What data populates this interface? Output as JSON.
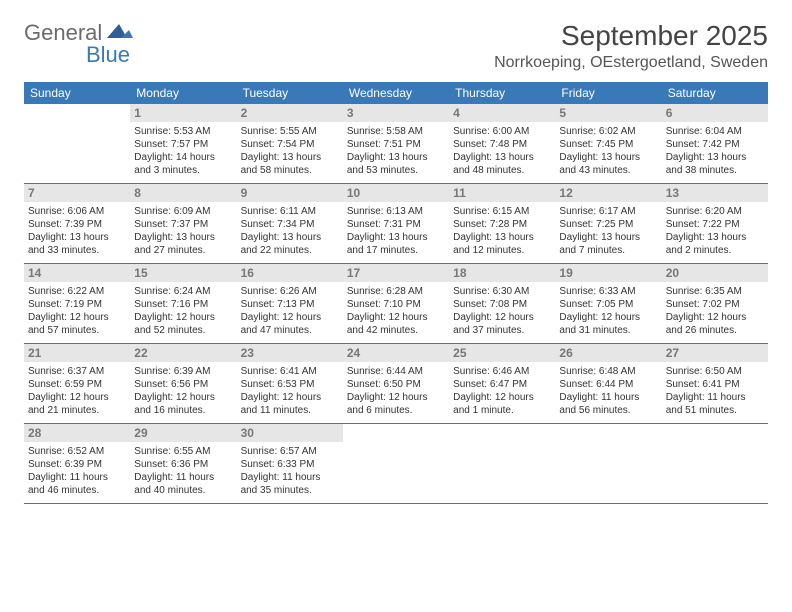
{
  "logo": {
    "word1": "General",
    "word2": "Blue"
  },
  "title": "September 2025",
  "location": "Norrkoeping, OEstergoetland, Sweden",
  "colors": {
    "header_bg": "#3a79b7",
    "header_text": "#ffffff",
    "daynum_bg": "#e6e6e6",
    "daynum_text": "#777777",
    "body_text": "#333333",
    "rule": "#3a79b7",
    "page_bg": "#ffffff"
  },
  "typography": {
    "title_fontsize": 28,
    "location_fontsize": 16,
    "dayheader_fontsize": 12,
    "cell_fontsize": 10
  },
  "day_names": [
    "Sunday",
    "Monday",
    "Tuesday",
    "Wednesday",
    "Thursday",
    "Friday",
    "Saturday"
  ],
  "weeks": [
    [
      null,
      {
        "n": "1",
        "sr": "Sunrise: 5:53 AM",
        "ss": "Sunset: 7:57 PM",
        "d1": "Daylight: 14 hours",
        "d2": "and 3 minutes."
      },
      {
        "n": "2",
        "sr": "Sunrise: 5:55 AM",
        "ss": "Sunset: 7:54 PM",
        "d1": "Daylight: 13 hours",
        "d2": "and 58 minutes."
      },
      {
        "n": "3",
        "sr": "Sunrise: 5:58 AM",
        "ss": "Sunset: 7:51 PM",
        "d1": "Daylight: 13 hours",
        "d2": "and 53 minutes."
      },
      {
        "n": "4",
        "sr": "Sunrise: 6:00 AM",
        "ss": "Sunset: 7:48 PM",
        "d1": "Daylight: 13 hours",
        "d2": "and 48 minutes."
      },
      {
        "n": "5",
        "sr": "Sunrise: 6:02 AM",
        "ss": "Sunset: 7:45 PM",
        "d1": "Daylight: 13 hours",
        "d2": "and 43 minutes."
      },
      {
        "n": "6",
        "sr": "Sunrise: 6:04 AM",
        "ss": "Sunset: 7:42 PM",
        "d1": "Daylight: 13 hours",
        "d2": "and 38 minutes."
      }
    ],
    [
      {
        "n": "7",
        "sr": "Sunrise: 6:06 AM",
        "ss": "Sunset: 7:39 PM",
        "d1": "Daylight: 13 hours",
        "d2": "and 33 minutes."
      },
      {
        "n": "8",
        "sr": "Sunrise: 6:09 AM",
        "ss": "Sunset: 7:37 PM",
        "d1": "Daylight: 13 hours",
        "d2": "and 27 minutes."
      },
      {
        "n": "9",
        "sr": "Sunrise: 6:11 AM",
        "ss": "Sunset: 7:34 PM",
        "d1": "Daylight: 13 hours",
        "d2": "and 22 minutes."
      },
      {
        "n": "10",
        "sr": "Sunrise: 6:13 AM",
        "ss": "Sunset: 7:31 PM",
        "d1": "Daylight: 13 hours",
        "d2": "and 17 minutes."
      },
      {
        "n": "11",
        "sr": "Sunrise: 6:15 AM",
        "ss": "Sunset: 7:28 PM",
        "d1": "Daylight: 13 hours",
        "d2": "and 12 minutes."
      },
      {
        "n": "12",
        "sr": "Sunrise: 6:17 AM",
        "ss": "Sunset: 7:25 PM",
        "d1": "Daylight: 13 hours",
        "d2": "and 7 minutes."
      },
      {
        "n": "13",
        "sr": "Sunrise: 6:20 AM",
        "ss": "Sunset: 7:22 PM",
        "d1": "Daylight: 13 hours",
        "d2": "and 2 minutes."
      }
    ],
    [
      {
        "n": "14",
        "sr": "Sunrise: 6:22 AM",
        "ss": "Sunset: 7:19 PM",
        "d1": "Daylight: 12 hours",
        "d2": "and 57 minutes."
      },
      {
        "n": "15",
        "sr": "Sunrise: 6:24 AM",
        "ss": "Sunset: 7:16 PM",
        "d1": "Daylight: 12 hours",
        "d2": "and 52 minutes."
      },
      {
        "n": "16",
        "sr": "Sunrise: 6:26 AM",
        "ss": "Sunset: 7:13 PM",
        "d1": "Daylight: 12 hours",
        "d2": "and 47 minutes."
      },
      {
        "n": "17",
        "sr": "Sunrise: 6:28 AM",
        "ss": "Sunset: 7:10 PM",
        "d1": "Daylight: 12 hours",
        "d2": "and 42 minutes."
      },
      {
        "n": "18",
        "sr": "Sunrise: 6:30 AM",
        "ss": "Sunset: 7:08 PM",
        "d1": "Daylight: 12 hours",
        "d2": "and 37 minutes."
      },
      {
        "n": "19",
        "sr": "Sunrise: 6:33 AM",
        "ss": "Sunset: 7:05 PM",
        "d1": "Daylight: 12 hours",
        "d2": "and 31 minutes."
      },
      {
        "n": "20",
        "sr": "Sunrise: 6:35 AM",
        "ss": "Sunset: 7:02 PM",
        "d1": "Daylight: 12 hours",
        "d2": "and 26 minutes."
      }
    ],
    [
      {
        "n": "21",
        "sr": "Sunrise: 6:37 AM",
        "ss": "Sunset: 6:59 PM",
        "d1": "Daylight: 12 hours",
        "d2": "and 21 minutes."
      },
      {
        "n": "22",
        "sr": "Sunrise: 6:39 AM",
        "ss": "Sunset: 6:56 PM",
        "d1": "Daylight: 12 hours",
        "d2": "and 16 minutes."
      },
      {
        "n": "23",
        "sr": "Sunrise: 6:41 AM",
        "ss": "Sunset: 6:53 PM",
        "d1": "Daylight: 12 hours",
        "d2": "and 11 minutes."
      },
      {
        "n": "24",
        "sr": "Sunrise: 6:44 AM",
        "ss": "Sunset: 6:50 PM",
        "d1": "Daylight: 12 hours",
        "d2": "and 6 minutes."
      },
      {
        "n": "25",
        "sr": "Sunrise: 6:46 AM",
        "ss": "Sunset: 6:47 PM",
        "d1": "Daylight: 12 hours",
        "d2": "and 1 minute."
      },
      {
        "n": "26",
        "sr": "Sunrise: 6:48 AM",
        "ss": "Sunset: 6:44 PM",
        "d1": "Daylight: 11 hours",
        "d2": "and 56 minutes."
      },
      {
        "n": "27",
        "sr": "Sunrise: 6:50 AM",
        "ss": "Sunset: 6:41 PM",
        "d1": "Daylight: 11 hours",
        "d2": "and 51 minutes."
      }
    ],
    [
      {
        "n": "28",
        "sr": "Sunrise: 6:52 AM",
        "ss": "Sunset: 6:39 PM",
        "d1": "Daylight: 11 hours",
        "d2": "and 46 minutes."
      },
      {
        "n": "29",
        "sr": "Sunrise: 6:55 AM",
        "ss": "Sunset: 6:36 PM",
        "d1": "Daylight: 11 hours",
        "d2": "and 40 minutes."
      },
      {
        "n": "30",
        "sr": "Sunrise: 6:57 AM",
        "ss": "Sunset: 6:33 PM",
        "d1": "Daylight: 11 hours",
        "d2": "and 35 minutes."
      },
      null,
      null,
      null,
      null
    ]
  ]
}
